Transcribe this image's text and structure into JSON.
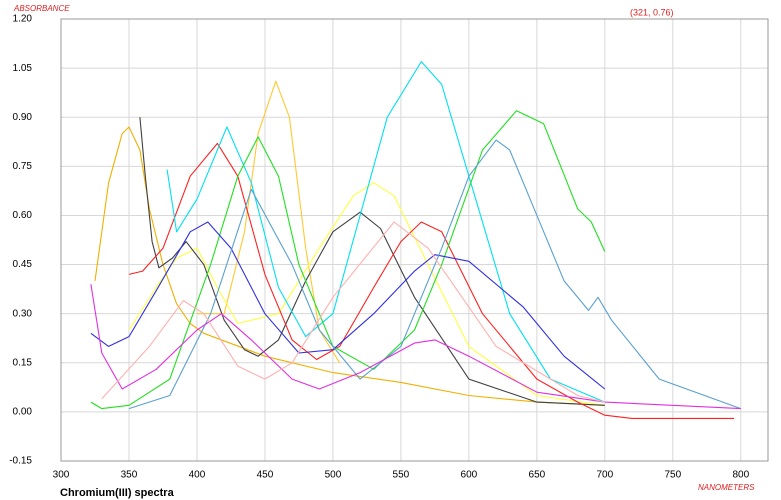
{
  "chart_data": {
    "type": "line",
    "title": "Chromium(III) spectra",
    "y_label": "ABSORBANCE",
    "x_label": "NANOMETERS",
    "annotation": "(321, 0.76)",
    "xlim": [
      300,
      820
    ],
    "xticks": [
      300,
      350,
      400,
      450,
      500,
      550,
      600,
      650,
      700,
      750,
      800
    ],
    "ylim": [
      -0.15,
      1.2
    ],
    "yticks": [
      {
        "value": 1.2,
        "label": "1.20"
      },
      1.05,
      {
        "value": 0.9,
        "label": "0.90"
      },
      0.75,
      {
        "value": 0.6,
        "label": "0.60"
      },
      0.45,
      {
        "value": 0.3,
        "label": "0.30"
      },
      0.15,
      {
        "value": 0,
        "label": "0.00"
      },
      -0.15
    ],
    "grid": true,
    "series": [
      {
        "color": "#f0b000",
        "x": [
          325,
          335,
          345,
          350,
          358,
          365,
          375,
          385,
          395,
          405,
          450,
          500,
          550,
          600,
          650,
          700
        ],
        "values": [
          0.4,
          0.7,
          0.85,
          0.87,
          0.8,
          0.62,
          0.45,
          0.33,
          0.27,
          0.24,
          0.17,
          0.12,
          0.09,
          0.05,
          0.03,
          0.02
        ]
      },
      {
        "color": "#ffc830",
        "x": [
          400,
          420,
          435,
          445,
          458,
          468,
          480,
          490,
          505
        ],
        "values": [
          0.3,
          0.3,
          0.55,
          0.85,
          1.01,
          0.9,
          0.5,
          0.25,
          0.15
        ]
      },
      {
        "color": "#ffff40",
        "x": [
          350,
          370,
          385,
          400,
          415,
          430,
          460,
          490,
          515,
          530,
          545,
          570,
          600,
          650,
          700
        ],
        "values": [
          0.25,
          0.38,
          0.47,
          0.5,
          0.38,
          0.27,
          0.3,
          0.5,
          0.66,
          0.7,
          0.66,
          0.45,
          0.2,
          0.05,
          0.02
        ]
      },
      {
        "color": "#404040",
        "x": [
          358,
          362,
          367,
          372,
          382,
          392,
          405,
          420,
          435,
          445,
          460,
          480,
          500,
          520,
          535,
          560,
          600,
          650,
          700
        ],
        "values": [
          0.9,
          0.72,
          0.52,
          0.44,
          0.47,
          0.52,
          0.45,
          0.28,
          0.19,
          0.17,
          0.22,
          0.4,
          0.55,
          0.61,
          0.56,
          0.35,
          0.1,
          0.03,
          0.02
        ]
      },
      {
        "color": "#ff2020",
        "x": [
          350,
          360,
          375,
          395,
          415,
          430,
          450,
          470,
          488,
          505,
          530,
          550,
          565,
          580,
          610,
          650,
          680,
          700,
          720,
          795
        ],
        "values": [
          0.42,
          0.43,
          0.5,
          0.72,
          0.82,
          0.72,
          0.42,
          0.22,
          0.16,
          0.2,
          0.38,
          0.52,
          0.58,
          0.55,
          0.3,
          0.1,
          0.03,
          -0.01,
          -0.02,
          -0.02
        ]
      },
      {
        "color": "#00e0f0",
        "x": [
          378,
          385,
          400,
          422,
          440,
          460,
          480,
          500,
          520,
          540,
          565,
          580,
          600,
          630,
          660,
          700
        ],
        "values": [
          0.74,
          0.55,
          0.65,
          0.87,
          0.7,
          0.38,
          0.23,
          0.3,
          0.6,
          0.9,
          1.07,
          1.0,
          0.72,
          0.3,
          0.1,
          0.03
        ]
      },
      {
        "color": "#20e020",
        "x": [
          322,
          330,
          350,
          380,
          410,
          430,
          445,
          460,
          475,
          500,
          530,
          560,
          580,
          610,
          635,
          655,
          680,
          690,
          700
        ],
        "values": [
          0.03,
          0.01,
          0.02,
          0.1,
          0.45,
          0.72,
          0.84,
          0.72,
          0.45,
          0.2,
          0.13,
          0.25,
          0.45,
          0.8,
          0.92,
          0.88,
          0.62,
          0.58,
          0.49
        ]
      },
      {
        "color": "#3030e0",
        "x": [
          322,
          335,
          350,
          370,
          395,
          408,
          425,
          450,
          475,
          500,
          530,
          560,
          575,
          600,
          640,
          670,
          700
        ],
        "values": [
          0.24,
          0.2,
          0.23,
          0.37,
          0.55,
          0.58,
          0.5,
          0.3,
          0.18,
          0.19,
          0.3,
          0.43,
          0.48,
          0.46,
          0.32,
          0.17,
          0.07
        ]
      },
      {
        "color": "#5aa0d0",
        "x": [
          350,
          380,
          410,
          440,
          470,
          490,
          520,
          550,
          580,
          600,
          620,
          630,
          645,
          670,
          688,
          695,
          705,
          740,
          800
        ],
        "values": [
          0.01,
          0.05,
          0.3,
          0.68,
          0.45,
          0.25,
          0.1,
          0.2,
          0.5,
          0.72,
          0.83,
          0.8,
          0.65,
          0.4,
          0.31,
          0.35,
          0.28,
          0.1,
          0.01
        ]
      },
      {
        "color": "#e030e0",
        "x": [
          322,
          330,
          345,
          370,
          400,
          418,
          440,
          470,
          490,
          520,
          560,
          575,
          600,
          650,
          700,
          800
        ],
        "values": [
          0.39,
          0.18,
          0.07,
          0.13,
          0.25,
          0.3,
          0.22,
          0.1,
          0.07,
          0.12,
          0.21,
          0.22,
          0.17,
          0.06,
          0.03,
          0.01
        ]
      },
      {
        "color": "#ffb0b0",
        "x": [
          330,
          365,
          390,
          405,
          430,
          450,
          470,
          500,
          545,
          570,
          620,
          680,
          700
        ],
        "values": [
          0.04,
          0.2,
          0.34,
          0.3,
          0.14,
          0.1,
          0.15,
          0.35,
          0.58,
          0.5,
          0.2,
          0.05,
          0.03
        ]
      }
    ]
  }
}
